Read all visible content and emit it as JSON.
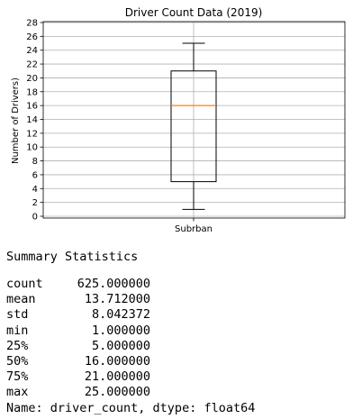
{
  "chart_data": {
    "type": "box",
    "title": "Driver Count Data (2019)",
    "ylabel": "Number of Drivers)",
    "xlabel": "",
    "categories": [
      "Subrban"
    ],
    "ylim": [
      0,
      28
    ],
    "yticks": [
      0,
      2,
      4,
      6,
      8,
      10,
      12,
      14,
      16,
      18,
      20,
      22,
      24,
      26,
      28
    ],
    "grid": true,
    "boxes": [
      {
        "category": "Subrban",
        "whisker_low": 1,
        "q1": 5,
        "median": 16,
        "q3": 21,
        "whisker_high": 25
      }
    ],
    "colors": {
      "box": "#000000",
      "median": "#ff7f0e",
      "grid": "#b0b0b0"
    }
  },
  "summary": {
    "title": "Summary Statistics",
    "rows": [
      {
        "label": "count",
        "value": "625.000000"
      },
      {
        "label": "mean",
        "value": "13.712000"
      },
      {
        "label": "std",
        "value": "8.042372"
      },
      {
        "label": "min",
        "value": "1.000000"
      },
      {
        "label": "25%",
        "value": "5.000000"
      },
      {
        "label": "50%",
        "value": "16.000000"
      },
      {
        "label": "75%",
        "value": "21.000000"
      },
      {
        "label": "max",
        "value": "25.000000"
      }
    ],
    "footer": "Name: driver_count, dtype: float64"
  }
}
